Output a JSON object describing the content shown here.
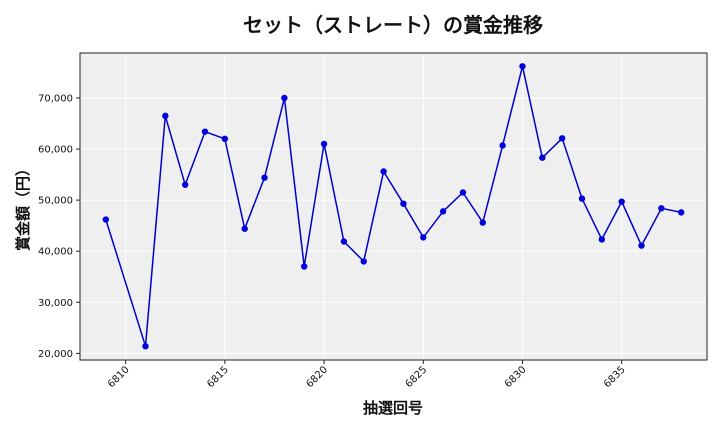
{
  "chart_data": {
    "type": "line",
    "title": "セット（ストレート）の賞金推移",
    "xlabel": "抽選回号",
    "ylabel": "賞金額（円）",
    "xlim": [
      6807.7,
      6839.3
    ],
    "ylim": [
      18700,
      78800
    ],
    "x_ticks": [
      6810,
      6815,
      6820,
      6825,
      6830,
      6835
    ],
    "x_tick_labels": [
      "6810",
      "6815",
      "6820",
      "6825",
      "6830",
      "6835"
    ],
    "y_ticks": [
      20000,
      30000,
      40000,
      50000,
      60000,
      70000
    ],
    "y_tick_labels": [
      "20,000",
      "30,000",
      "40,000",
      "50,000",
      "60,000",
      "70,000"
    ],
    "grid": true,
    "colors": {
      "line": "#0000cc",
      "marker": "#0000dd",
      "plot_bg": "#efefef",
      "grid": "#ffffff"
    },
    "series": [
      {
        "x": [
          6809,
          6811,
          6812,
          6813,
          6814,
          6815,
          6816,
          6817,
          6818,
          6819,
          6820,
          6821,
          6822,
          6823,
          6824,
          6825,
          6826,
          6827,
          6828,
          6829,
          6830,
          6831,
          6832,
          6833,
          6834,
          6835,
          6836,
          6837,
          6838
        ],
        "values": [
          46200,
          21400,
          66500,
          53000,
          63400,
          62000,
          44400,
          54400,
          70000,
          37000,
          61000,
          41900,
          38000,
          55600,
          49300,
          42700,
          47800,
          51500,
          45600,
          60700,
          76200,
          58300,
          62100,
          50300,
          42300,
          49700,
          41100,
          48400,
          47600
        ]
      }
    ]
  }
}
